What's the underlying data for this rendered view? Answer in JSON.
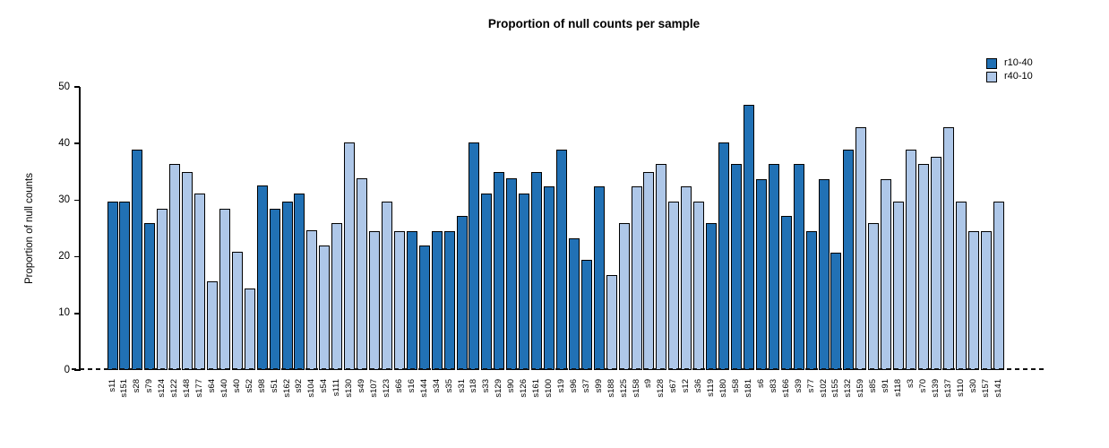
{
  "figure": {
    "title": "Proportion of null counts per sample"
  },
  "chart_data": {
    "type": "bar",
    "title": "Proportion of null counts per sample",
    "xlabel": "",
    "ylabel": "Proportion of null counts",
    "ylim": [
      0,
      50
    ],
    "yticks": [
      0,
      10,
      20,
      30,
      40,
      50
    ],
    "grid": false,
    "zero_line_style": "dashed",
    "legend_position": "top-right",
    "bar_outline_color": "#000000",
    "legend": [
      {
        "label": "r10-40",
        "color": "#2171b5"
      },
      {
        "label": "r40-10",
        "color": "#aec7e8"
      }
    ],
    "bars": [
      {
        "label": "s11",
        "value": 29.8,
        "series": "r10-40"
      },
      {
        "label": "s151",
        "value": 29.8,
        "series": "r10-40"
      },
      {
        "label": "s28",
        "value": 39.0,
        "series": "r10-40"
      },
      {
        "label": "s79",
        "value": 26.0,
        "series": "r10-40"
      },
      {
        "label": "s124",
        "value": 28.5,
        "series": "r40-10"
      },
      {
        "label": "s122",
        "value": 36.4,
        "series": "r40-10"
      },
      {
        "label": "s148",
        "value": 35.0,
        "series": "r40-10"
      },
      {
        "label": "s177",
        "value": 31.2,
        "series": "r40-10"
      },
      {
        "label": "s64",
        "value": 15.6,
        "series": "r40-10"
      },
      {
        "label": "s140",
        "value": 28.5,
        "series": "r40-10"
      },
      {
        "label": "s40",
        "value": 20.9,
        "series": "r40-10"
      },
      {
        "label": "s52",
        "value": 14.4,
        "series": "r40-10"
      },
      {
        "label": "s98",
        "value": 32.6,
        "series": "r10-40"
      },
      {
        "label": "s51",
        "value": 28.5,
        "series": "r10-40"
      },
      {
        "label": "s162",
        "value": 29.8,
        "series": "r10-40"
      },
      {
        "label": "s92",
        "value": 31.2,
        "series": "r10-40"
      },
      {
        "label": "s104",
        "value": 24.7,
        "series": "r40-10"
      },
      {
        "label": "s54",
        "value": 22.0,
        "series": "r40-10"
      },
      {
        "label": "s111",
        "value": 26.0,
        "series": "r40-10"
      },
      {
        "label": "s130",
        "value": 40.2,
        "series": "r40-10"
      },
      {
        "label": "s49",
        "value": 33.8,
        "series": "r40-10"
      },
      {
        "label": "s107",
        "value": 24.6,
        "series": "r40-10"
      },
      {
        "label": "s123",
        "value": 29.8,
        "series": "r40-10"
      },
      {
        "label": "s66",
        "value": 24.6,
        "series": "r40-10"
      },
      {
        "label": "s16",
        "value": 24.6,
        "series": "r10-40"
      },
      {
        "label": "s144",
        "value": 22.0,
        "series": "r10-40"
      },
      {
        "label": "s34",
        "value": 24.6,
        "series": "r10-40"
      },
      {
        "label": "s35",
        "value": 24.6,
        "series": "r10-40"
      },
      {
        "label": "s31",
        "value": 27.2,
        "series": "r10-40"
      },
      {
        "label": "s18",
        "value": 40.2,
        "series": "r10-40"
      },
      {
        "label": "s33",
        "value": 31.2,
        "series": "r10-40"
      },
      {
        "label": "s129",
        "value": 35.0,
        "series": "r10-40"
      },
      {
        "label": "s90",
        "value": 33.8,
        "series": "r10-40"
      },
      {
        "label": "s126",
        "value": 31.2,
        "series": "r10-40"
      },
      {
        "label": "s161",
        "value": 35.0,
        "series": "r10-40"
      },
      {
        "label": "s100",
        "value": 32.5,
        "series": "r10-40"
      },
      {
        "label": "s19",
        "value": 39.0,
        "series": "r10-40"
      },
      {
        "label": "s96",
        "value": 23.2,
        "series": "r10-40"
      },
      {
        "label": "s37",
        "value": 19.4,
        "series": "r10-40"
      },
      {
        "label": "s99",
        "value": 32.5,
        "series": "r10-40"
      },
      {
        "label": "s188",
        "value": 16.7,
        "series": "r40-10"
      },
      {
        "label": "s125",
        "value": 26.0,
        "series": "r40-10"
      },
      {
        "label": "s158",
        "value": 32.4,
        "series": "r40-10"
      },
      {
        "label": "s9",
        "value": 35.0,
        "series": "r40-10"
      },
      {
        "label": "s128",
        "value": 36.4,
        "series": "r40-10"
      },
      {
        "label": "s67",
        "value": 29.8,
        "series": "r40-10"
      },
      {
        "label": "s12",
        "value": 32.4,
        "series": "r40-10"
      },
      {
        "label": "s36",
        "value": 29.8,
        "series": "r40-10"
      },
      {
        "label": "s119",
        "value": 26.0,
        "series": "r10-40"
      },
      {
        "label": "s180",
        "value": 40.2,
        "series": "r10-40"
      },
      {
        "label": "s58",
        "value": 36.4,
        "series": "r10-40"
      },
      {
        "label": "s181",
        "value": 46.8,
        "series": "r10-40"
      },
      {
        "label": "s6",
        "value": 33.7,
        "series": "r10-40"
      },
      {
        "label": "s83",
        "value": 36.4,
        "series": "r10-40"
      },
      {
        "label": "s166",
        "value": 27.2,
        "series": "r10-40"
      },
      {
        "label": "s39",
        "value": 36.4,
        "series": "r10-40"
      },
      {
        "label": "s77",
        "value": 24.6,
        "series": "r10-40"
      },
      {
        "label": "s102",
        "value": 33.7,
        "series": "r10-40"
      },
      {
        "label": "s155",
        "value": 20.8,
        "series": "r10-40"
      },
      {
        "label": "s132",
        "value": 38.9,
        "series": "r10-40"
      },
      {
        "label": "s159",
        "value": 42.9,
        "series": "r40-10"
      },
      {
        "label": "s85",
        "value": 26.0,
        "series": "r40-10"
      },
      {
        "label": "s91",
        "value": 33.7,
        "series": "r40-10"
      },
      {
        "label": "s118",
        "value": 29.8,
        "series": "r40-10"
      },
      {
        "label": "s3",
        "value": 38.9,
        "series": "r40-10"
      },
      {
        "label": "s70",
        "value": 36.4,
        "series": "r40-10"
      },
      {
        "label": "s139",
        "value": 37.7,
        "series": "r40-10"
      },
      {
        "label": "s137",
        "value": 42.9,
        "series": "r40-10"
      },
      {
        "label": "s110",
        "value": 29.8,
        "series": "r40-10"
      },
      {
        "label": "s30",
        "value": 24.6,
        "series": "r40-10"
      },
      {
        "label": "s157",
        "value": 24.6,
        "series": "r40-10"
      },
      {
        "label": "s141",
        "value": 29.8,
        "series": "r40-10"
      }
    ]
  }
}
